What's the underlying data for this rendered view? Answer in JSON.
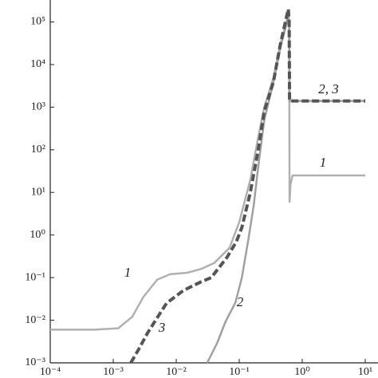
{
  "chart_data": {
    "type": "line",
    "xlog": true,
    "ylog": true,
    "xlim": [
      0.0001,
      10
    ],
    "ylim": [
      0.001,
      300000
    ],
    "xticks": [
      {
        "value": 0.0001,
        "label": "10⁻⁴"
      },
      {
        "value": 0.001,
        "label": "10⁻³"
      },
      {
        "value": 0.01,
        "label": "10⁻²"
      },
      {
        "value": 0.1,
        "label": "10⁻¹"
      },
      {
        "value": 1,
        "label": "10⁰"
      },
      {
        "value": 10,
        "label": "10¹"
      }
    ],
    "yticks": [
      {
        "value": 0.001,
        "label": "10⁻³"
      },
      {
        "value": 0.01,
        "label": "10⁻²"
      },
      {
        "value": 0.1,
        "label": "10⁻¹"
      },
      {
        "value": 1,
        "label": "10⁰"
      },
      {
        "value": 10,
        "label": "10¹"
      },
      {
        "value": 100,
        "label": "10²"
      },
      {
        "value": 1000,
        "label": "10³"
      },
      {
        "value": 10000,
        "label": "10⁴"
      },
      {
        "value": 100000,
        "label": "10⁵"
      }
    ],
    "series": [
      {
        "name": "1",
        "color": "#b0b0b0",
        "dash": false,
        "x": [
          0.0001,
          0.0005,
          0.0012,
          0.002,
          0.003,
          0.005,
          0.008,
          0.015,
          0.025,
          0.04,
          0.07,
          0.1,
          0.15,
          0.2,
          0.25,
          0.35,
          0.45,
          0.6,
          0.62,
          0.63,
          0.65,
          0.7,
          1,
          3,
          10
        ],
        "y": [
          0.006,
          0.006,
          0.0065,
          0.012,
          0.035,
          0.09,
          0.12,
          0.13,
          0.16,
          0.22,
          0.5,
          2,
          20,
          200,
          1000,
          5000,
          30000,
          150000,
          100000,
          6,
          15,
          25,
          25,
          25,
          25
        ]
      },
      {
        "name": "2",
        "color": "#a0a0a0",
        "dash": false,
        "x": [
          0.031,
          0.045,
          0.06,
          0.087,
          0.11,
          0.14,
          0.17,
          0.2,
          0.25,
          0.35,
          0.45,
          0.6,
          0.62,
          0.63,
          0.65,
          1,
          3,
          10
        ],
        "y": [
          0.001,
          0.003,
          0.009,
          0.026,
          0.1,
          0.8,
          5,
          40,
          500,
          4000,
          25000,
          130000,
          100000,
          1400,
          1400,
          1400,
          1400,
          1400
        ]
      },
      {
        "name": "3",
        "color": "#555555",
        "dash": true,
        "x": [
          0.0019,
          0.0025,
          0.0035,
          0.0047,
          0.007,
          0.013,
          0.025,
          0.036,
          0.064,
          0.09,
          0.11,
          0.15,
          0.2,
          0.25,
          0.35,
          0.45,
          0.6,
          0.62,
          0.63,
          0.65,
          1,
          3,
          10
        ],
        "y": [
          0.001,
          0.002,
          0.005,
          0.01,
          0.025,
          0.05,
          0.08,
          0.1,
          0.3,
          0.7,
          1.5,
          10,
          100,
          800,
          4000,
          30000,
          200000,
          100000,
          1400,
          1400,
          1400,
          1400,
          1400
        ]
      }
    ],
    "annotations": [
      "1",
      "2, 3",
      "1",
      "2",
      "3"
    ]
  }
}
